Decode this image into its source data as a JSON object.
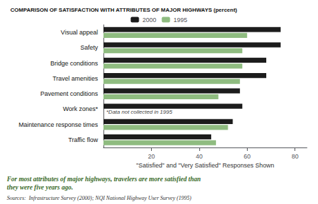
{
  "chart_data": {
    "type": "bar",
    "orientation": "horizontal",
    "title": "COMPARISON OF SATISFACTION WITH ATTRIBUTES OF MAJOR HIGHWAYS (percent)",
    "categories": [
      "Visual appeal",
      "Safety",
      "Bridge conditions",
      "Travel amenities",
      "Pavement conditions",
      "Work zones*",
      "Maintenance response times",
      "Traffic flow"
    ],
    "series": [
      {
        "name": "2000",
        "color": "#1c1c1c",
        "values": [
          74,
          74,
          68,
          68,
          57,
          58,
          54,
          45
        ]
      },
      {
        "name": "1995",
        "color": "#8fbc80",
        "values": [
          60,
          58,
          58,
          57,
          48,
          null,
          52,
          47
        ]
      }
    ],
    "xlabel": "\"Satisfied\" and \"Very Satisfied\" Responses Shown",
    "xlim": [
      0,
      85
    ],
    "xticks": [
      20,
      40,
      60,
      80
    ],
    "grid": false,
    "legend": "top",
    "annotations": [
      {
        "text": "*Data not collected in 1995",
        "category": "Work zones*"
      },
      {
        "text": "For most attributes of major highways, travelers are more satisfied than\nthey were five years ago."
      },
      {
        "text": "Sources:  Infrastructure Survey (2000); NQI National Highway User Survey (1995)"
      }
    ]
  }
}
